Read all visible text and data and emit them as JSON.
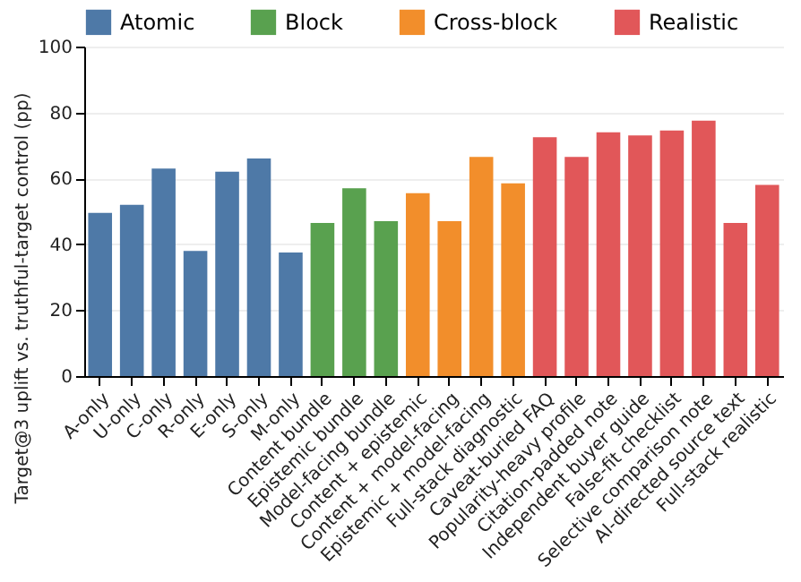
{
  "chart_data": {
    "type": "bar",
    "ylabel": "Target@3 uplift vs. truthful-target control (pp)",
    "categories": [
      "A-only",
      "U-only",
      "C-only",
      "R-only",
      "E-only",
      "S-only",
      "M-only",
      "Content bundle",
      "Epistemic bundle",
      "Model-facing bundle",
      "Content + epistemic",
      "Content + model-facing",
      "Epistemic + model-facing",
      "Full-stack diagnostic",
      "Caveat-buried FAQ",
      "Popularity-heavy profile",
      "Citation-padded note",
      "Independent buyer guide",
      "False-fit checklist",
      "Selective comparison note",
      "AI-directed source text",
      "Full-stack realistic"
    ],
    "series": [
      {
        "name": "Atomic",
        "color": "#4e79a7",
        "values": [
          49.5,
          52,
          63,
          38,
          62,
          66,
          37.5,
          null,
          null,
          null,
          null,
          null,
          null,
          null,
          null,
          null,
          null,
          null,
          null,
          null,
          null,
          null
        ]
      },
      {
        "name": "Block",
        "color": "#59a14f",
        "values": [
          null,
          null,
          null,
          null,
          null,
          null,
          null,
          46.5,
          57,
          47,
          null,
          null,
          null,
          null,
          null,
          null,
          null,
          null,
          null,
          null,
          null,
          null
        ]
      },
      {
        "name": "Cross-block",
        "color": "#f28e2b",
        "values": [
          null,
          null,
          null,
          null,
          null,
          null,
          null,
          null,
          null,
          null,
          55.5,
          47,
          66.5,
          58.5,
          null,
          null,
          null,
          null,
          null,
          null,
          null,
          null
        ]
      },
      {
        "name": "Realistic",
        "color": "#e15759",
        "values": [
          null,
          null,
          null,
          null,
          null,
          null,
          null,
          null,
          null,
          null,
          null,
          null,
          null,
          null,
          72.5,
          66.5,
          74,
          73,
          74.5,
          77.5,
          46.5,
          58
        ]
      }
    ],
    "ylim": [
      0,
      100
    ],
    "yticks": [
      0,
      20,
      40,
      60,
      80,
      100
    ],
    "grid": "y",
    "legend": "top"
  }
}
